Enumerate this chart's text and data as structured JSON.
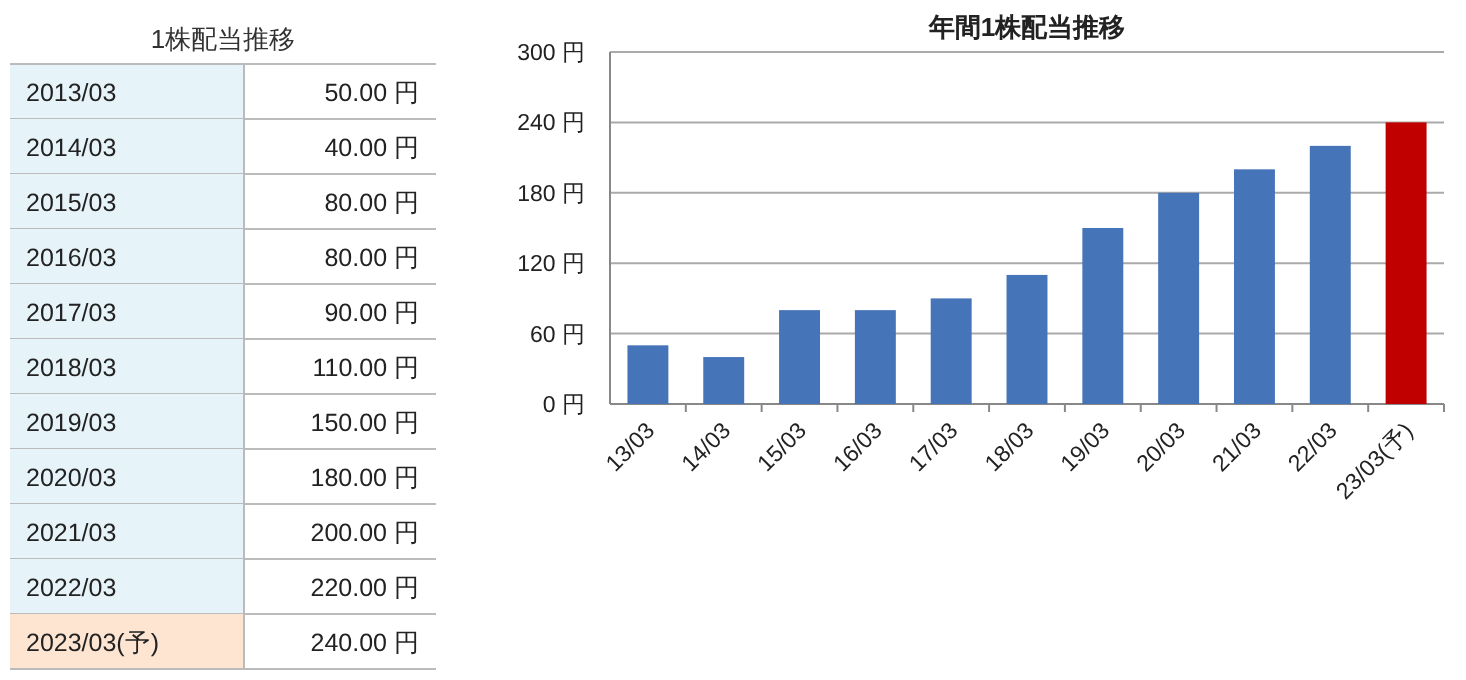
{
  "chart_data": [
    {
      "type": "other",
      "title": "1株配当推移",
      "annotations": [
        "2013/03",
        "50.00 円",
        "2014/03",
        "40.00 円",
        "2015/03",
        "80.00 円",
        "2016/03",
        "80.00 円",
        "2017/03",
        "90.00 円",
        "2018/03",
        "110.00 円",
        "2019/03",
        "150.00 円",
        "2020/03",
        "180.00 円",
        "2021/03",
        "200.00 円",
        "2022/03",
        "220.00 円",
        "2023/03(予)",
        "240.00 円"
      ]
    },
    {
      "type": "bar",
      "title": "年間1株配当推移",
      "categories": [
        "13/03",
        "14/03",
        "15/03",
        "16/03",
        "17/03",
        "18/03",
        "19/03",
        "20/03",
        "21/03",
        "22/03",
        "23/03(予)"
      ],
      "values": [
        50,
        40,
        80,
        80,
        90,
        110,
        150,
        180,
        200,
        220,
        240
      ],
      "colors": [
        "#4674b8",
        "#4674b8",
        "#4674b8",
        "#4674b8",
        "#4674b8",
        "#4674b8",
        "#4674b8",
        "#4674b8",
        "#4674b8",
        "#4674b8",
        "#c00000"
      ],
      "ylim": [
        0,
        300
      ],
      "yticks": [
        {
          "value": 0,
          "label": "0 円"
        },
        {
          "value": 60,
          "label": "60 円"
        },
        {
          "value": 120,
          "label": "120 円"
        },
        {
          "value": 180,
          "label": "180 円"
        },
        {
          "value": 240,
          "label": "240 円"
        },
        {
          "value": 300,
          "label": "300 円"
        }
      ],
      "grid": "y"
    }
  ]
}
